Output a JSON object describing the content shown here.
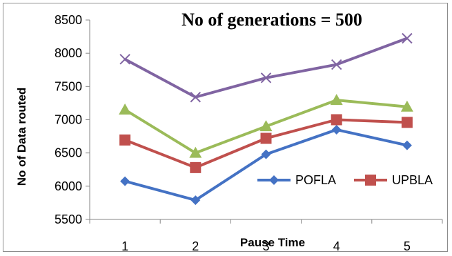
{
  "chart_data": {
    "type": "line",
    "title": "No of generations = 500",
    "xlabel": "Pause Time",
    "ylabel": "No of Data routed",
    "categories": [
      "1",
      "2",
      "3",
      "4",
      "5"
    ],
    "ylim": [
      5500,
      8500
    ],
    "yticks": [
      "5500",
      "6000",
      "6500",
      "7000",
      "7500",
      "8000",
      "8500"
    ],
    "grid": false,
    "legend_position": "bottom-right",
    "series": [
      {
        "name": "POFLA",
        "color": "#4472C4",
        "marker": "diamond",
        "values": [
          6075,
          5790,
          6480,
          6850,
          6615
        ]
      },
      {
        "name": "UPBLA",
        "color": "#C0504D",
        "marker": "square",
        "values": [
          6695,
          6280,
          6720,
          7000,
          6960
        ]
      },
      {
        "color": "#9BBB59",
        "marker": "triangle",
        "values": [
          7150,
          6500,
          6900,
          7295,
          7195
        ]
      },
      {
        "color": "#8064A2",
        "marker": "x",
        "values": [
          7910,
          7340,
          7630,
          7830,
          8225
        ]
      }
    ]
  }
}
